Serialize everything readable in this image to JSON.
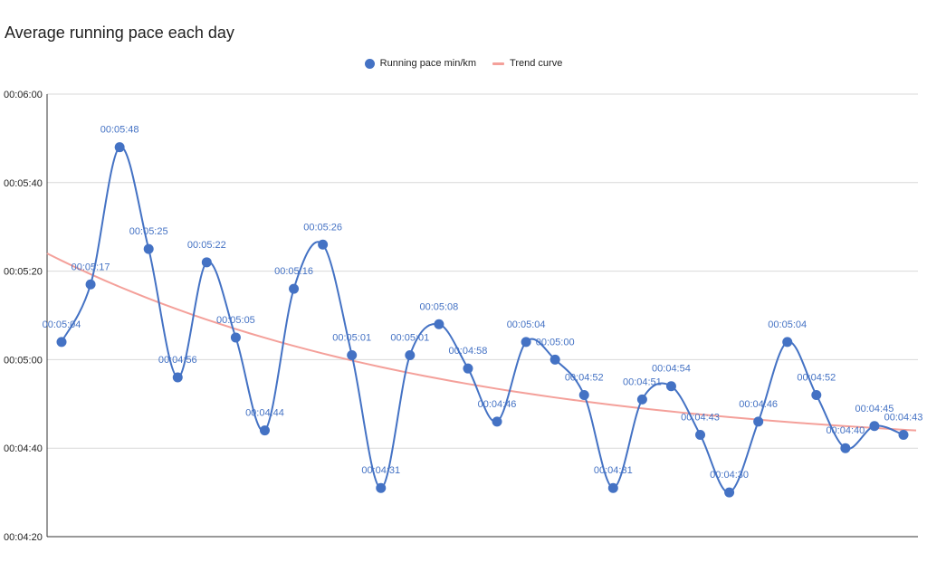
{
  "chart_data": {
    "type": "line",
    "title": "Average running pace each day",
    "xlabel": "",
    "ylabel": "",
    "y_unit": "time mm:ss",
    "y_ticks": [
      "00:04:20",
      "00:04:40",
      "00:05:00",
      "00:05:20",
      "00:05:40",
      "00:06:00"
    ],
    "ylim": [
      "00:04:20",
      "00:06:00"
    ],
    "grid": true,
    "legend_position": "top",
    "series": [
      {
        "name": "Running pace min/km",
        "color": "#4472c4",
        "style": "smooth-line-with-markers",
        "values": [
          "00:05:04",
          "00:05:17",
          "00:05:48",
          "00:05:25",
          "00:04:56",
          "00:05:22",
          "00:05:05",
          "00:04:44",
          "00:05:16",
          "00:05:26",
          "00:05:01",
          "00:04:31",
          "00:05:01",
          "00:05:08",
          "00:04:58",
          "00:04:46",
          "00:05:04",
          "00:05:00",
          "00:04:52",
          "00:04:31",
          "00:04:51",
          "00:04:54",
          "00:04:43",
          "00:04:30",
          "00:04:46",
          "00:05:04",
          "00:04:52",
          "00:04:40",
          "00:04:45",
          "00:04:43"
        ]
      },
      {
        "name": "Trend curve",
        "color": "#f4a09a",
        "style": "smooth-line",
        "start_value": "00:05:24",
        "end_value": "00:04:44"
      }
    ]
  }
}
